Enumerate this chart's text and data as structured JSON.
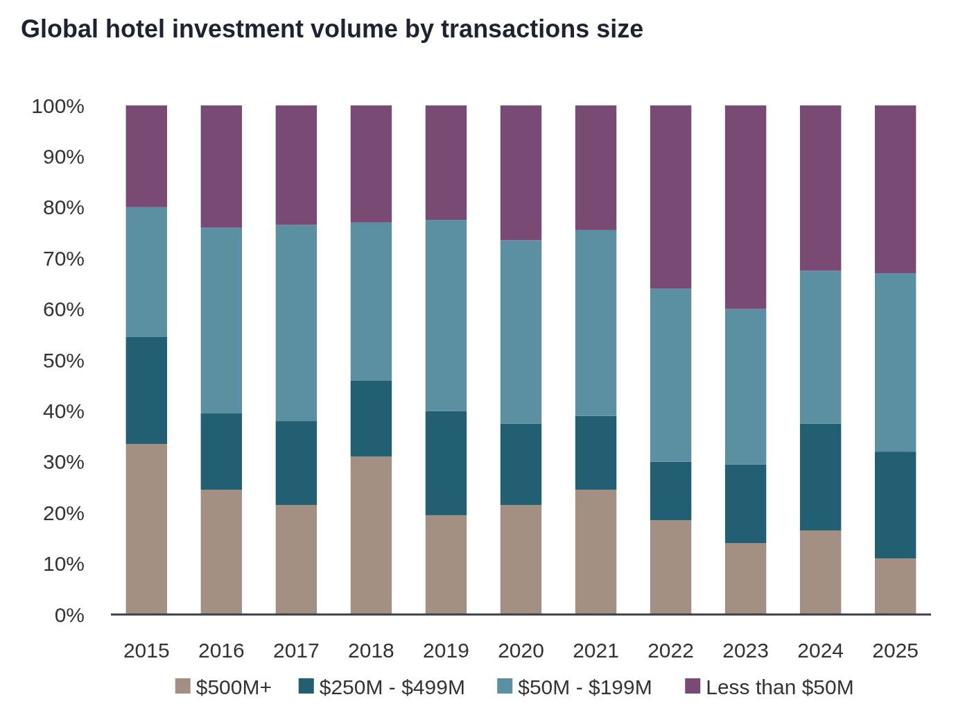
{
  "chart_data": {
    "type": "bar",
    "title": "Global hotel investment volume by transactions size",
    "stacked": true,
    "categories": [
      "2015",
      "2016",
      "2017",
      "2018",
      "2019",
      "2020",
      "2021",
      "2022",
      "2023",
      "2024",
      "2025"
    ],
    "series": [
      {
        "name": "$500M+",
        "color": "#a39083",
        "values": [
          33.5,
          24.5,
          21.5,
          31,
          19.5,
          21.5,
          24.5,
          18.5,
          14,
          16.5,
          11
        ]
      },
      {
        "name": "$250M - $499M",
        "color": "#235f73",
        "values": [
          21,
          15,
          16.5,
          15,
          20.5,
          16,
          14.5,
          11.5,
          15.5,
          21,
          21
        ]
      },
      {
        "name": "$50M - $199M",
        "color": "#5a90a1",
        "values": [
          25.5,
          36.5,
          38.5,
          31,
          37.5,
          36,
          36.5,
          34,
          30.5,
          30,
          35
        ]
      },
      {
        "name": "Less than $50M",
        "color": "#784a74",
        "values": [
          20,
          24,
          23.5,
          23,
          22.5,
          26.5,
          24.5,
          36,
          40,
          32.5,
          33
        ]
      }
    ],
    "ylim": [
      0,
      100
    ],
    "yticks": [
      {
        "value": 0,
        "label": "0%"
      },
      {
        "value": 10,
        "label": "10%"
      },
      {
        "value": 20,
        "label": "20%"
      },
      {
        "value": 30,
        "label": "30%"
      },
      {
        "value": 40,
        "label": "40%"
      },
      {
        "value": 50,
        "label": "50%"
      },
      {
        "value": 60,
        "label": "60%"
      },
      {
        "value": 70,
        "label": "70%"
      },
      {
        "value": 80,
        "label": "80%"
      },
      {
        "value": 90,
        "label": "90%"
      },
      {
        "value": 100,
        "label": "100%"
      }
    ],
    "grid": false,
    "legend": "bottom"
  }
}
